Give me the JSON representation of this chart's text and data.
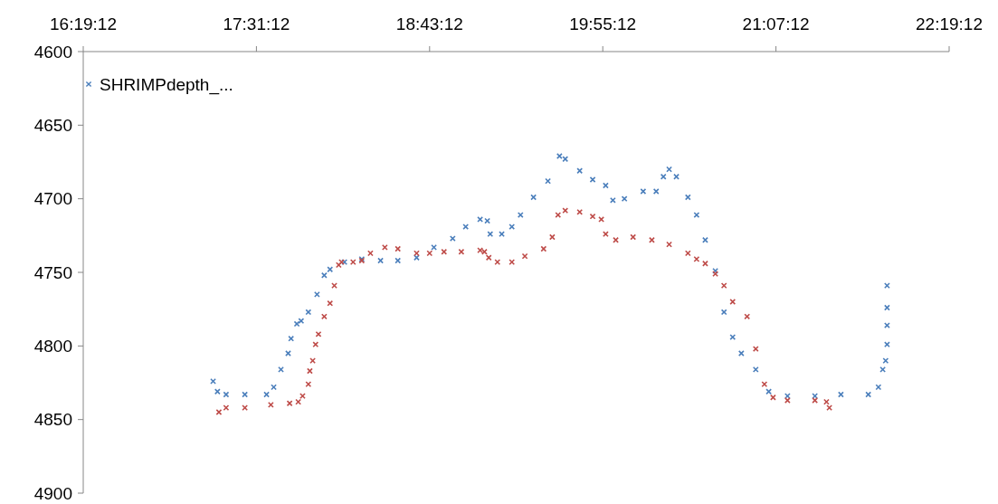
{
  "chart_data": {
    "type": "scatter",
    "xlim": [
      16.32,
      22.32
    ],
    "xticks": [
      {
        "value": 16.32,
        "label": "16:19:12"
      },
      {
        "value": 17.52,
        "label": "17:31:12"
      },
      {
        "value": 18.72,
        "label": "18:43:12"
      },
      {
        "value": 19.92,
        "label": "19:55:12"
      },
      {
        "value": 21.12,
        "label": "21:07:12"
      },
      {
        "value": 22.32,
        "label": "22:19:12"
      }
    ],
    "ylim": [
      4900,
      4600
    ],
    "yticks": [
      4600,
      4650,
      4700,
      4750,
      4800,
      4850,
      4900
    ],
    "grid": false,
    "legend": "top left",
    "marker": "cross",
    "series": [
      {
        "name": "SHRIMPdepth_...",
        "color": "#4a7ebb",
        "x": [
          17.22,
          17.25,
          17.31,
          17.44,
          17.59,
          17.64,
          17.69,
          17.74,
          17.76,
          17.8,
          17.83,
          17.88,
          17.94,
          17.99,
          18.03,
          18.13,
          18.25,
          18.38,
          18.5,
          18.63,
          18.75,
          18.88,
          18.97,
          19.07,
          19.12,
          19.14,
          19.22,
          19.29,
          19.35,
          19.44,
          19.54,
          19.62,
          19.66,
          19.76,
          19.85,
          19.94,
          19.99,
          20.07,
          20.2,
          20.29,
          20.34,
          20.38,
          20.43,
          20.51,
          20.57,
          20.63,
          20.7,
          20.76,
          20.82,
          20.88,
          20.98,
          21.07,
          21.2,
          21.39,
          21.57,
          21.76,
          21.83,
          21.86,
          21.88,
          21.89,
          21.89,
          21.89,
          21.89
        ],
        "values": [
          4824,
          4831,
          4833,
          4833,
          4833,
          4828,
          4816,
          4805,
          4795,
          4785,
          4783,
          4777,
          4765,
          4752,
          4748,
          4743,
          4741,
          4742,
          4742,
          4740,
          4733,
          4727,
          4719,
          4714,
          4715,
          4724,
          4724,
          4719,
          4711,
          4699,
          4688,
          4671,
          4673,
          4681,
          4687,
          4691,
          4701,
          4700,
          4695,
          4695,
          4685,
          4680,
          4685,
          4699,
          4711,
          4728,
          4749,
          4777,
          4794,
          4805,
          4816,
          4831,
          4834,
          4834,
          4833,
          4833,
          4828,
          4816,
          4810,
          4799,
          4786,
          4774,
          4759
        ]
      },
      {
        "color": "#be4b48",
        "x": [
          17.26,
          17.31,
          17.44,
          17.62,
          17.75,
          17.81,
          17.84,
          17.88,
          17.89,
          17.91,
          17.93,
          17.95,
          17.99,
          18.03,
          18.06,
          18.09,
          18.11,
          18.19,
          18.25,
          18.31,
          18.41,
          18.5,
          18.63,
          18.72,
          18.82,
          18.94,
          19.07,
          19.1,
          19.13,
          19.19,
          19.29,
          19.38,
          19.51,
          19.57,
          19.61,
          19.66,
          19.76,
          19.85,
          19.91,
          19.94,
          20.01,
          20.13,
          20.26,
          20.38,
          20.51,
          20.57,
          20.63,
          20.7,
          20.76,
          20.82,
          20.92,
          20.98,
          21.04,
          21.1,
          21.2,
          21.39,
          21.47,
          21.49
        ],
        "values": [
          4845,
          4842,
          4842,
          4840,
          4839,
          4838,
          4834,
          4826,
          4817,
          4810,
          4799,
          4792,
          4780,
          4771,
          4759,
          4745,
          4743,
          4743,
          4742,
          4737,
          4733,
          4734,
          4737,
          4737,
          4736,
          4736,
          4735,
          4736,
          4740,
          4743,
          4743,
          4739,
          4734,
          4726,
          4711,
          4708,
          4709,
          4712,
          4714,
          4724,
          4728,
          4726,
          4728,
          4731,
          4737,
          4741,
          4744,
          4751,
          4759,
          4770,
          4780,
          4802,
          4826,
          4835,
          4837,
          4837,
          4838,
          4842
        ]
      }
    ]
  }
}
